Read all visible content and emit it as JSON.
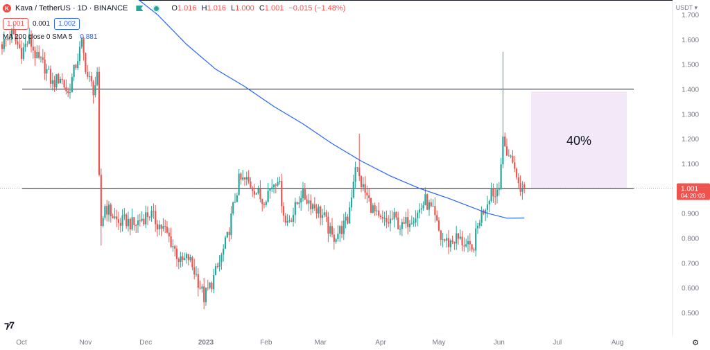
{
  "header": {
    "symbol": "Kava / TetherUS · 1D · BINANCE",
    "logo_text": "K",
    "ohlc": {
      "o_label": "O",
      "o": "1.016",
      "h_label": "H",
      "h": "1.016",
      "l_label": "L",
      "l": "1.000",
      "c_label": "C",
      "c": "1.001",
      "change": "−0.015 (−1.48%)"
    }
  },
  "price_boxes": {
    "sell": "1.001",
    "spread": "0.001",
    "buy": "1.002"
  },
  "ma_legend": {
    "label": "MA 200 close 0 SMA 5",
    "value": "0.881"
  },
  "currency": "USDT",
  "settings_icon": "gear-icon",
  "colors": {
    "up": "#26a69a",
    "down": "#ef5350",
    "ma": "#2962ff",
    "range_fill": "#f3e8f8",
    "axis_text": "#787b86"
  },
  "chart_data": {
    "type": "candlestick",
    "symbol": "KAVA/USDT",
    "timeframe": "1D",
    "ylim": [
      0.45,
      1.77
    ],
    "y_ticks": [
      "1.700",
      "1.600",
      "1.500",
      "1.400",
      "1.300",
      "1.200",
      "1.100",
      "1.000",
      "0.900",
      "0.800",
      "0.700",
      "0.600",
      "0.500"
    ],
    "x_ticks": [
      "Oct",
      "Nov",
      "Dec",
      "2023",
      "Feb",
      "Mar",
      "Apr",
      "May",
      "Jun",
      "Jul",
      "Aug"
    ],
    "last_price_label": {
      "price": "1.001",
      "countdown": "04:20:03"
    },
    "horizontal_lines": [
      1.4,
      1.0
    ],
    "range_box": {
      "from": 1.0,
      "to": 1.39,
      "label": "40%"
    },
    "series": [
      {
        "name": "KAVA/USDT",
        "kind": "close_path",
        "points": [
          [
            0,
            1.58
          ],
          [
            5,
            1.62
          ],
          [
            10,
            1.55
          ],
          [
            14,
            1.6
          ],
          [
            18,
            1.52
          ],
          [
            22,
            1.49
          ],
          [
            26,
            1.42
          ],
          [
            30,
            1.45
          ],
          [
            34,
            1.38
          ],
          [
            38,
            1.5
          ],
          [
            41,
            1.58
          ],
          [
            44,
            1.45
          ],
          [
            47,
            1.4
          ],
          [
            49,
            1.44
          ],
          [
            50,
            1.03
          ],
          [
            51,
            0.85
          ],
          [
            53,
            0.93
          ],
          [
            56,
            0.9
          ],
          [
            60,
            0.86
          ],
          [
            64,
            0.87
          ],
          [
            68,
            0.85
          ],
          [
            72,
            0.88
          ],
          [
            76,
            0.9
          ],
          [
            80,
            0.86
          ],
          [
            84,
            0.83
          ],
          [
            88,
            0.77
          ],
          [
            92,
            0.7
          ],
          [
            96,
            0.72
          ],
          [
            100,
            0.65
          ],
          [
            104,
            0.56
          ],
          [
            108,
            0.62
          ],
          [
            112,
            0.7
          ],
          [
            116,
            0.8
          ],
          [
            119,
            0.92
          ],
          [
            122,
            1.03
          ],
          [
            126,
            1.03
          ],
          [
            130,
            1.0
          ],
          [
            134,
            0.95
          ],
          [
            138,
            1.0
          ],
          [
            142,
            1.05
          ],
          [
            146,
            0.86
          ],
          [
            150,
            0.9
          ],
          [
            154,
            0.98
          ],
          [
            158,
            0.95
          ],
          [
            162,
            0.92
          ],
          [
            166,
            0.88
          ],
          [
            170,
            0.8
          ],
          [
            174,
            0.83
          ],
          [
            178,
            0.87
          ],
          [
            180,
            0.98
          ],
          [
            182,
            1.1
          ],
          [
            184,
            1.04
          ],
          [
            186,
            1.0
          ],
          [
            190,
            0.93
          ],
          [
            194,
            0.87
          ],
          [
            198,
            0.86
          ],
          [
            202,
            0.88
          ],
          [
            206,
            0.84
          ],
          [
            210,
            0.88
          ],
          [
            214,
            0.9
          ],
          [
            218,
            0.95
          ],
          [
            222,
            0.9
          ],
          [
            226,
            0.8
          ],
          [
            230,
            0.78
          ],
          [
            234,
            0.8
          ],
          [
            238,
            0.78
          ],
          [
            242,
            0.74
          ],
          [
            246,
            0.88
          ],
          [
            250,
            0.95
          ],
          [
            252,
            1.0
          ],
          [
            254,
            0.97
          ],
          [
            256,
            1.03
          ],
          [
            258,
            1.18
          ],
          [
            260,
            1.15
          ],
          [
            262,
            1.12
          ],
          [
            264,
            1.1
          ],
          [
            265,
            1.03
          ],
          [
            267,
            1.0
          ],
          [
            269,
            1.001
          ]
        ]
      },
      {
        "name": "MA 200 close 0 SMA 5",
        "points": [
          [
            67,
            1.78
          ],
          [
            80,
            1.7
          ],
          [
            95,
            1.58
          ],
          [
            110,
            1.48
          ],
          [
            125,
            1.41
          ],
          [
            140,
            1.33
          ],
          [
            155,
            1.26
          ],
          [
            170,
            1.18
          ],
          [
            185,
            1.11
          ],
          [
            200,
            1.05
          ],
          [
            215,
            1.0
          ],
          [
            230,
            0.96
          ],
          [
            240,
            0.93
          ],
          [
            250,
            0.9
          ],
          [
            260,
            0.88
          ],
          [
            269,
            0.881
          ]
        ]
      }
    ]
  }
}
